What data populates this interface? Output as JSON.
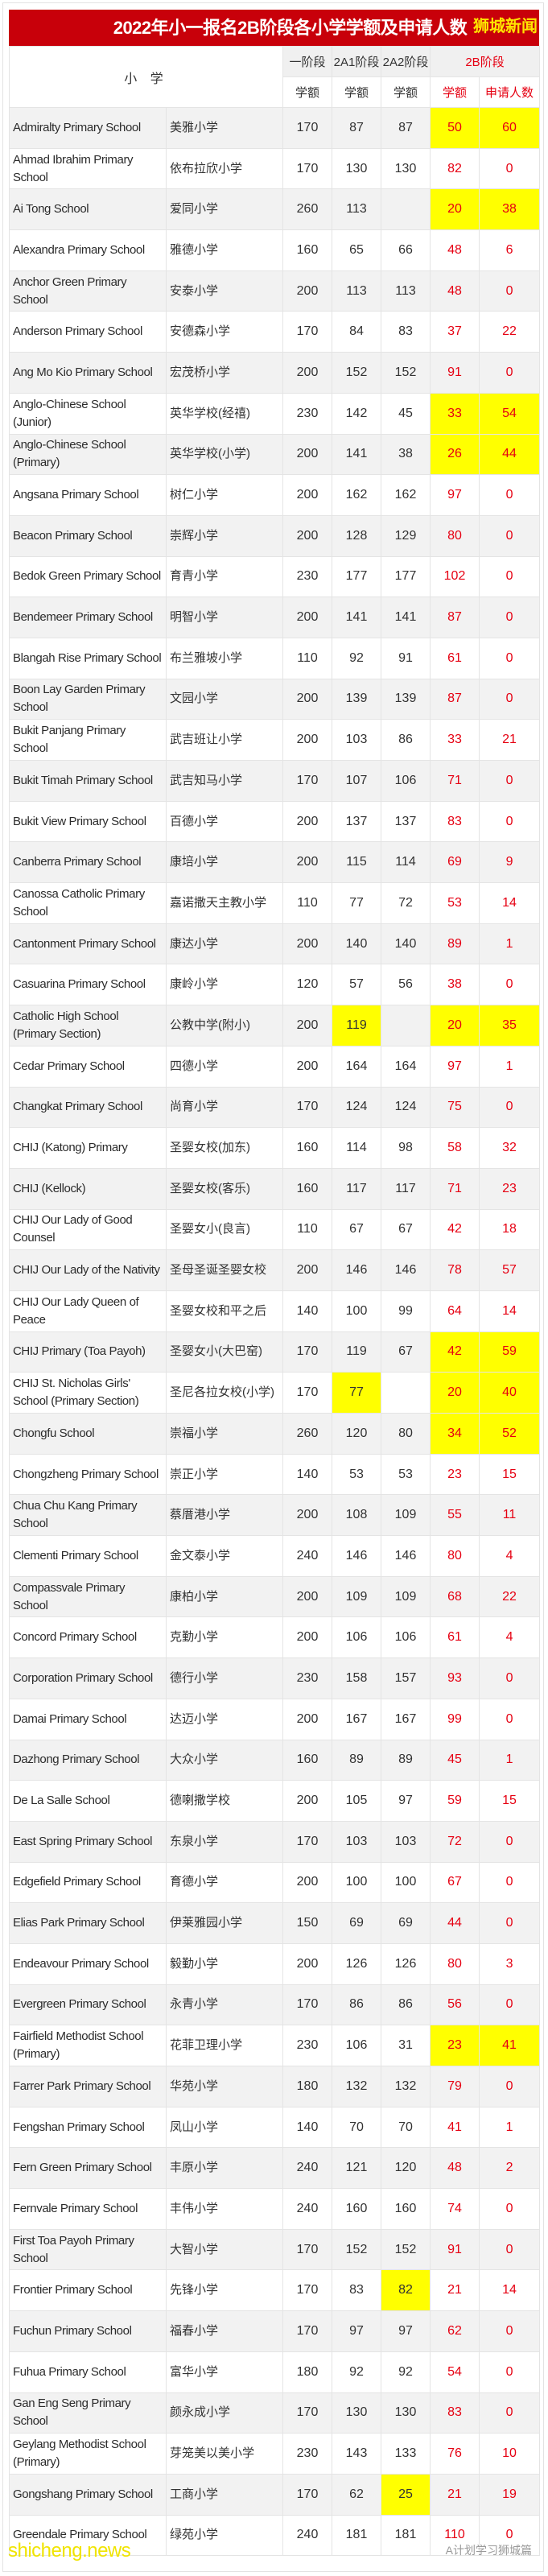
{
  "title": "2022年小一报名2B阶段各小学学额及申请人数",
  "brand": "狮城新闻",
  "header": {
    "school": "小 学",
    "phase1": "一阶段",
    "phase2a1": "2A1阶段",
    "phase2a2": "2A2阶段",
    "phase2b": "2B阶段",
    "places": "学额",
    "applicants": "申请人数"
  },
  "colors": {
    "title_bg": "#c8000a",
    "highlight": "#ffff00",
    "phase2b_text": "#e60012"
  },
  "columns": [
    "en",
    "zh",
    "p1",
    "a1",
    "a2",
    "b_places",
    "b_applicants"
  ],
  "rows": [
    {
      "en": "Admiralty Primary School",
      "zh": "美雅小学",
      "p1": "170",
      "a1": "87",
      "a2": "87",
      "b_places": "50",
      "b_applicants": "60",
      "highlight": [
        "b"
      ]
    },
    {
      "en": "Ahmad Ibrahim Primary School",
      "zh": "依布拉欣小学",
      "p1": "170",
      "a1": "130",
      "a2": "130",
      "b_places": "82",
      "b_applicants": "0",
      "highlight": []
    },
    {
      "en": "Ai Tong School",
      "zh": "爱同小学",
      "p1": "260",
      "a1": "113",
      "a2": "",
      "b_places": "20",
      "b_applicants": "38",
      "highlight": [
        "b"
      ]
    },
    {
      "en": "Alexandra Primary School",
      "zh": "雅德小学",
      "p1": "160",
      "a1": "65",
      "a2": "66",
      "b_places": "48",
      "b_applicants": "6",
      "highlight": []
    },
    {
      "en": "Anchor Green Primary School",
      "zh": "安泰小学",
      "p1": "200",
      "a1": "113",
      "a2": "113",
      "b_places": "48",
      "b_applicants": "0",
      "highlight": []
    },
    {
      "en": "Anderson Primary School",
      "zh": "安德森小学",
      "p1": "170",
      "a1": "84",
      "a2": "83",
      "b_places": "37",
      "b_applicants": "22",
      "highlight": []
    },
    {
      "en": "Ang Mo Kio Primary School",
      "zh": "宏茂桥小学",
      "p1": "200",
      "a1": "152",
      "a2": "152",
      "b_places": "91",
      "b_applicants": "0",
      "highlight": []
    },
    {
      "en": "Anglo-Chinese School (Junior)",
      "zh": "英华学校(经禧)",
      "p1": "230",
      "a1": "142",
      "a2": "45",
      "b_places": "33",
      "b_applicants": "54",
      "highlight": [
        "b"
      ]
    },
    {
      "en": "Anglo-Chinese School (Primary)",
      "zh": "英华学校(小学)",
      "p1": "200",
      "a1": "141",
      "a2": "38",
      "b_places": "26",
      "b_applicants": "44",
      "highlight": [
        "b"
      ]
    },
    {
      "en": "Angsana Primary School",
      "zh": "树仁小学",
      "p1": "200",
      "a1": "162",
      "a2": "162",
      "b_places": "97",
      "b_applicants": "0",
      "highlight": []
    },
    {
      "en": "Beacon Primary School",
      "zh": "崇辉小学",
      "p1": "200",
      "a1": "128",
      "a2": "129",
      "b_places": "80",
      "b_applicants": "0",
      "highlight": []
    },
    {
      "en": "Bedok Green Primary School",
      "zh": "育青小学",
      "p1": "230",
      "a1": "177",
      "a2": "177",
      "b_places": "102",
      "b_applicants": "0",
      "highlight": []
    },
    {
      "en": "Bendemeer Primary School",
      "zh": "明智小学",
      "p1": "200",
      "a1": "141",
      "a2": "141",
      "b_places": "87",
      "b_applicants": "0",
      "highlight": []
    },
    {
      "en": "Blangah Rise Primary School",
      "zh": "布兰雅坡小学",
      "p1": "110",
      "a1": "92",
      "a2": "91",
      "b_places": "61",
      "b_applicants": "0",
      "highlight": []
    },
    {
      "en": "Boon Lay Garden Primary School",
      "zh": "文园小学",
      "p1": "200",
      "a1": "139",
      "a2": "139",
      "b_places": "87",
      "b_applicants": "0",
      "highlight": []
    },
    {
      "en": "Bukit Panjang Primary School",
      "zh": "武吉班让小学",
      "p1": "200",
      "a1": "103",
      "a2": "86",
      "b_places": "33",
      "b_applicants": "21",
      "highlight": []
    },
    {
      "en": "Bukit Timah Primary School",
      "zh": "武吉知马小学",
      "p1": "170",
      "a1": "107",
      "a2": "106",
      "b_places": "71",
      "b_applicants": "0",
      "highlight": []
    },
    {
      "en": "Bukit View Primary School",
      "zh": "百德小学",
      "p1": "200",
      "a1": "137",
      "a2": "137",
      "b_places": "83",
      "b_applicants": "0",
      "highlight": []
    },
    {
      "en": "Canberra Primary School",
      "zh": "康培小学",
      "p1": "200",
      "a1": "115",
      "a2": "114",
      "b_places": "69",
      "b_applicants": "9",
      "highlight": []
    },
    {
      "en": "Canossa Catholic Primary School",
      "zh": "嘉诺撒天主教小学",
      "p1": "110",
      "a1": "77",
      "a2": "72",
      "b_places": "53",
      "b_applicants": "14",
      "highlight": []
    },
    {
      "en": "Cantonment Primary School",
      "zh": "康达小学",
      "p1": "200",
      "a1": "140",
      "a2": "140",
      "b_places": "89",
      "b_applicants": "1",
      "highlight": []
    },
    {
      "en": "Casuarina Primary School",
      "zh": "康岭小学",
      "p1": "120",
      "a1": "57",
      "a2": "56",
      "b_places": "38",
      "b_applicants": "0",
      "highlight": []
    },
    {
      "en": "Catholic High School (Primary Section)",
      "zh": "公教中学(附小)",
      "p1": "200",
      "a1": "119",
      "a2": "",
      "b_places": "20",
      "b_applicants": "35",
      "highlight": [
        "a1",
        "b"
      ]
    },
    {
      "en": "Cedar Primary School",
      "zh": "四德小学",
      "p1": "200",
      "a1": "164",
      "a2": "164",
      "b_places": "97",
      "b_applicants": "1",
      "highlight": []
    },
    {
      "en": "Changkat Primary School",
      "zh": "尚育小学",
      "p1": "170",
      "a1": "124",
      "a2": "124",
      "b_places": "75",
      "b_applicants": "0",
      "highlight": []
    },
    {
      "en": "CHIJ (Katong) Primary",
      "zh": "圣婴女校(加东)",
      "p1": "160",
      "a1": "114",
      "a2": "98",
      "b_places": "58",
      "b_applicants": "32",
      "highlight": []
    },
    {
      "en": "CHIJ (Kellock)",
      "zh": "圣婴女校(客乐)",
      "p1": "160",
      "a1": "117",
      "a2": "117",
      "b_places": "71",
      "b_applicants": "23",
      "highlight": []
    },
    {
      "en": "CHIJ Our Lady of Good Counsel",
      "zh": "圣婴女小(良言)",
      "p1": "110",
      "a1": "67",
      "a2": "67",
      "b_places": "42",
      "b_applicants": "18",
      "highlight": []
    },
    {
      "en": "CHIJ Our Lady of the Nativity",
      "zh": "圣母圣诞圣婴女校",
      "p1": "200",
      "a1": "146",
      "a2": "146",
      "b_places": "78",
      "b_applicants": "57",
      "highlight": []
    },
    {
      "en": "CHIJ Our Lady Queen of Peace",
      "zh": "圣婴女校和平之后",
      "p1": "140",
      "a1": "100",
      "a2": "99",
      "b_places": "64",
      "b_applicants": "14",
      "highlight": []
    },
    {
      "en": "CHIJ Primary (Toa Payoh)",
      "zh": "圣婴女小(大巴窑)",
      "p1": "170",
      "a1": "119",
      "a2": "67",
      "b_places": "42",
      "b_applicants": "59",
      "highlight": [
        "b"
      ]
    },
    {
      "en": "CHIJ St. Nicholas Girls' School (Primary Section)",
      "zh": "圣尼各拉女校(小学)",
      "p1": "170",
      "a1": "77",
      "a2": "",
      "b_places": "20",
      "b_applicants": "40",
      "highlight": [
        "a1",
        "b"
      ]
    },
    {
      "en": "Chongfu School",
      "zh": "崇福小学",
      "p1": "260",
      "a1": "120",
      "a2": "80",
      "b_places": "34",
      "b_applicants": "52",
      "highlight": [
        "b"
      ]
    },
    {
      "en": "Chongzheng Primary School",
      "zh": "崇正小学",
      "p1": "140",
      "a1": "53",
      "a2": "53",
      "b_places": "23",
      "b_applicants": "15",
      "highlight": []
    },
    {
      "en": "Chua Chu Kang Primary School",
      "zh": "蔡厝港小学",
      "p1": "200",
      "a1": "108",
      "a2": "109",
      "b_places": "55",
      "b_applicants": "11",
      "highlight": []
    },
    {
      "en": "Clementi Primary School",
      "zh": "金文泰小学",
      "p1": "240",
      "a1": "146",
      "a2": "146",
      "b_places": "80",
      "b_applicants": "4",
      "highlight": []
    },
    {
      "en": "Compassvale Primary School",
      "zh": "康柏小学",
      "p1": "200",
      "a1": "109",
      "a2": "109",
      "b_places": "68",
      "b_applicants": "22",
      "highlight": []
    },
    {
      "en": "Concord Primary School",
      "zh": "克勤小学",
      "p1": "200",
      "a1": "106",
      "a2": "106",
      "b_places": "61",
      "b_applicants": "4",
      "highlight": []
    },
    {
      "en": "Corporation Primary School",
      "zh": "德行小学",
      "p1": "230",
      "a1": "158",
      "a2": "157",
      "b_places": "93",
      "b_applicants": "0",
      "highlight": []
    },
    {
      "en": "Damai Primary School",
      "zh": "达迈小学",
      "p1": "200",
      "a1": "167",
      "a2": "167",
      "b_places": "99",
      "b_applicants": "0",
      "highlight": []
    },
    {
      "en": "Dazhong Primary School",
      "zh": "大众小学",
      "p1": "160",
      "a1": "89",
      "a2": "89",
      "b_places": "45",
      "b_applicants": "1",
      "highlight": []
    },
    {
      "en": "De La Salle School",
      "zh": "德喇撒学校",
      "p1": "200",
      "a1": "105",
      "a2": "97",
      "b_places": "59",
      "b_applicants": "15",
      "highlight": []
    },
    {
      "en": "East Spring Primary School",
      "zh": "东泉小学",
      "p1": "170",
      "a1": "103",
      "a2": "103",
      "b_places": "72",
      "b_applicants": "0",
      "highlight": []
    },
    {
      "en": "Edgefield Primary School",
      "zh": "育德小学",
      "p1": "200",
      "a1": "100",
      "a2": "100",
      "b_places": "67",
      "b_applicants": "0",
      "highlight": []
    },
    {
      "en": "Elias Park Primary School",
      "zh": "伊莱雅园小学",
      "p1": "150",
      "a1": "69",
      "a2": "69",
      "b_places": "44",
      "b_applicants": "0",
      "highlight": []
    },
    {
      "en": "Endeavour Primary School",
      "zh": "毅勤小学",
      "p1": "200",
      "a1": "126",
      "a2": "126",
      "b_places": "80",
      "b_applicants": "3",
      "highlight": []
    },
    {
      "en": "Evergreen Primary School",
      "zh": "永青小学",
      "p1": "170",
      "a1": "86",
      "a2": "86",
      "b_places": "56",
      "b_applicants": "0",
      "highlight": []
    },
    {
      "en": "Fairfield Methodist School (Primary)",
      "zh": "花菲卫理小学",
      "p1": "230",
      "a1": "106",
      "a2": "31",
      "b_places": "23",
      "b_applicants": "41",
      "highlight": [
        "b"
      ]
    },
    {
      "en": "Farrer Park Primary School",
      "zh": "华苑小学",
      "p1": "180",
      "a1": "132",
      "a2": "132",
      "b_places": "79",
      "b_applicants": "0",
      "highlight": []
    },
    {
      "en": "Fengshan Primary School",
      "zh": "凤山小学",
      "p1": "140",
      "a1": "70",
      "a2": "70",
      "b_places": "41",
      "b_applicants": "1",
      "highlight": []
    },
    {
      "en": "Fern Green Primary School",
      "zh": "丰原小学",
      "p1": "240",
      "a1": "121",
      "a2": "120",
      "b_places": "48",
      "b_applicants": "2",
      "highlight": []
    },
    {
      "en": "Fernvale Primary School",
      "zh": "丰伟小学",
      "p1": "240",
      "a1": "160",
      "a2": "160",
      "b_places": "74",
      "b_applicants": "0",
      "highlight": []
    },
    {
      "en": "First Toa Payoh Primary School",
      "zh": "大智小学",
      "p1": "170",
      "a1": "152",
      "a2": "152",
      "b_places": "91",
      "b_applicants": "0",
      "highlight": []
    },
    {
      "en": "Frontier Primary School",
      "zh": "先锋小学",
      "p1": "170",
      "a1": "83",
      "a2": "82",
      "b_places": "21",
      "b_applicants": "14",
      "highlight": [
        "a2"
      ]
    },
    {
      "en": "Fuchun Primary School",
      "zh": "福春小学",
      "p1": "170",
      "a1": "97",
      "a2": "97",
      "b_places": "62",
      "b_applicants": "0",
      "highlight": []
    },
    {
      "en": "Fuhua Primary School",
      "zh": "富华小学",
      "p1": "180",
      "a1": "92",
      "a2": "92",
      "b_places": "54",
      "b_applicants": "0",
      "highlight": []
    },
    {
      "en": "Gan Eng Seng Primary School",
      "zh": "颜永成小学",
      "p1": "170",
      "a1": "130",
      "a2": "130",
      "b_places": "83",
      "b_applicants": "0",
      "highlight": []
    },
    {
      "en": "Geylang Methodist School (Primary)",
      "zh": "芽笼美以美小学",
      "p1": "230",
      "a1": "143",
      "a2": "133",
      "b_places": "76",
      "b_applicants": "10",
      "highlight": []
    },
    {
      "en": "Gongshang Primary School",
      "zh": "工商小学",
      "p1": "170",
      "a1": "62",
      "a2": "25",
      "b_places": "21",
      "b_applicants": "19",
      "highlight": [
        "a2"
      ]
    },
    {
      "en": "Greendale Primary School",
      "zh": "绿苑小学",
      "p1": "240",
      "a1": "181",
      "a2": "181",
      "b_places": "110",
      "b_applicants": "0",
      "highlight": []
    }
  ],
  "watermarks": {
    "site": "shicheng.news",
    "account": "A计划学习狮城篇"
  }
}
